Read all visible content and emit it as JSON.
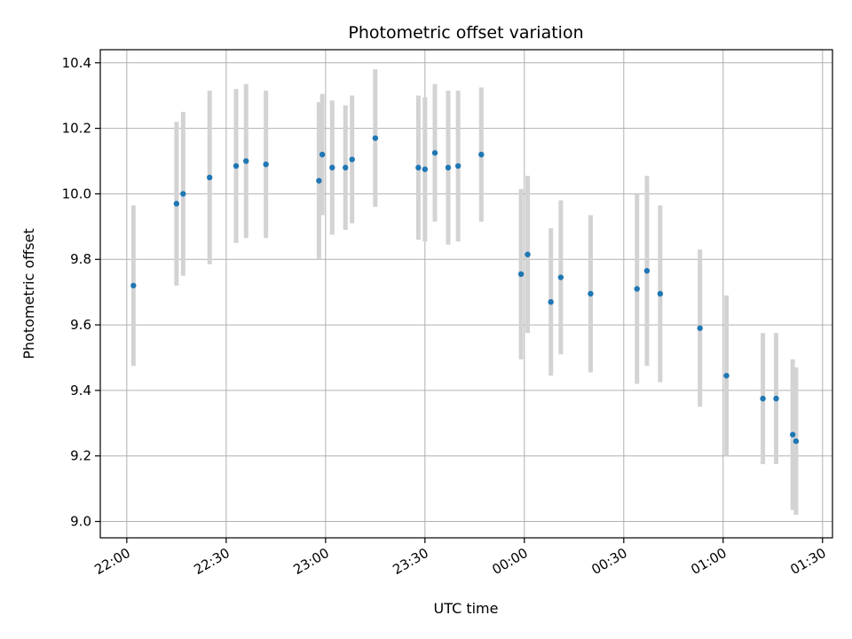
{
  "chart_data": {
    "type": "scatter",
    "title": "Photometric offset variation",
    "xlabel": "UTC time",
    "ylabel": "Photometric offset",
    "x_ticks": [
      "22:00",
      "22:30",
      "23:00",
      "23:30",
      "00:00",
      "00:30",
      "01:00",
      "01:30"
    ],
    "y_ticks": [
      "9.0",
      "9.2",
      "9.4",
      "9.6",
      "9.8",
      "10.0",
      "10.2",
      "10.4"
    ],
    "grid": true,
    "xlim": [
      "21:52",
      "01:33"
    ],
    "ylim": [
      8.95,
      10.44
    ],
    "colors": {
      "point": "#1f77b4",
      "errorbar": "#d3d3d3",
      "grid": "#b0b0b0"
    },
    "series": [
      {
        "points": [
          {
            "x": "22:02",
            "y": 9.72,
            "err": 0.245
          },
          {
            "x": "22:15",
            "y": 9.97,
            "err": 0.25
          },
          {
            "x": "22:17",
            "y": 10.0,
            "err": 0.25
          },
          {
            "x": "22:25",
            "y": 10.05,
            "err": 0.265
          },
          {
            "x": "22:33",
            "y": 10.085,
            "err": 0.235
          },
          {
            "x": "22:36",
            "y": 10.1,
            "err": 0.235
          },
          {
            "x": "22:42",
            "y": 10.09,
            "err": 0.225
          },
          {
            "x": "22:58",
            "y": 10.04,
            "err": 0.24
          },
          {
            "x": "22:59",
            "y": 10.12,
            "err": 0.185
          },
          {
            "x": "23:02",
            "y": 10.08,
            "err": 0.205
          },
          {
            "x": "23:06",
            "y": 10.08,
            "err": 0.19
          },
          {
            "x": "23:08",
            "y": 10.105,
            "err": 0.195
          },
          {
            "x": "23:15",
            "y": 10.17,
            "err": 0.21
          },
          {
            "x": "23:28",
            "y": 10.08,
            "err": 0.22
          },
          {
            "x": "23:30",
            "y": 10.075,
            "err": 0.22
          },
          {
            "x": "23:33",
            "y": 10.125,
            "err": 0.21
          },
          {
            "x": "23:37",
            "y": 10.08,
            "err": 0.235
          },
          {
            "x": "23:40",
            "y": 10.085,
            "err": 0.23
          },
          {
            "x": "23:47",
            "y": 10.12,
            "err": 0.205
          },
          {
            "x": "23:59",
            "y": 9.755,
            "err": 0.26
          },
          {
            "x": "00:01",
            "y": 9.815,
            "err": 0.24
          },
          {
            "x": "00:08",
            "y": 9.67,
            "err": 0.225
          },
          {
            "x": "00:11",
            "y": 9.745,
            "err": 0.235
          },
          {
            "x": "00:20",
            "y": 9.695,
            "err": 0.24
          },
          {
            "x": "00:34",
            "y": 9.71,
            "err": 0.29
          },
          {
            "x": "00:37",
            "y": 9.765,
            "err": 0.29
          },
          {
            "x": "00:41",
            "y": 9.695,
            "err": 0.27
          },
          {
            "x": "00:53",
            "y": 9.59,
            "err": 0.24
          },
          {
            "x": "01:01",
            "y": 9.445,
            "err": 0.245
          },
          {
            "x": "01:12",
            "y": 9.375,
            "err": 0.2
          },
          {
            "x": "01:16",
            "y": 9.375,
            "err": 0.2
          },
          {
            "x": "01:21",
            "y": 9.265,
            "err": 0.23
          },
          {
            "x": "01:22",
            "y": 9.245,
            "err": 0.225
          }
        ]
      }
    ]
  }
}
